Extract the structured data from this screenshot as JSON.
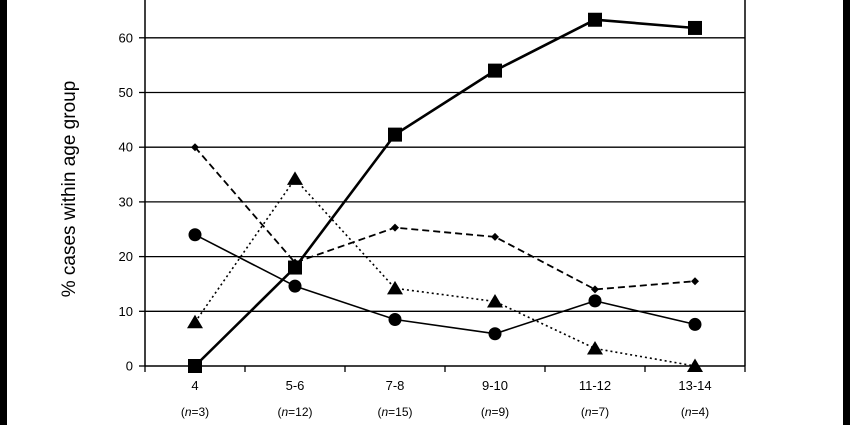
{
  "chart_data": {
    "type": "line",
    "title": "",
    "xlabel": "",
    "ylabel": "% cases within age group",
    "ylim": [
      0,
      67
    ],
    "yticks": [
      0,
      10,
      20,
      30,
      40,
      50,
      60
    ],
    "grid": true,
    "legend": "none",
    "categories": [
      "4",
      "5-6",
      "7-8",
      "9-10",
      "11-12",
      "13-14"
    ],
    "category_n": [
      "(n=3)",
      "(n=12)",
      "(n=15)",
      "(n=9)",
      "(n=7)",
      "(n=4)"
    ],
    "series": [
      {
        "marker": "square",
        "line": "solid-thick",
        "values": [
          0,
          18,
          42.3,
          54,
          63.3,
          61.8
        ]
      },
      {
        "marker": "diamond",
        "line": "dashed",
        "values": [
          40,
          18.9,
          25.3,
          23.6,
          14,
          15.5
        ]
      },
      {
        "marker": "triangle",
        "line": "dotted",
        "values": [
          8,
          34.2,
          14.2,
          11.8,
          3.2,
          0
        ]
      },
      {
        "marker": "circle",
        "line": "solid-thin",
        "values": [
          24,
          14.6,
          8.5,
          5.9,
          11.9,
          7.6
        ]
      }
    ],
    "colors": {
      "series": "#000000",
      "grid": "#000000",
      "background": "#ffffff"
    }
  }
}
